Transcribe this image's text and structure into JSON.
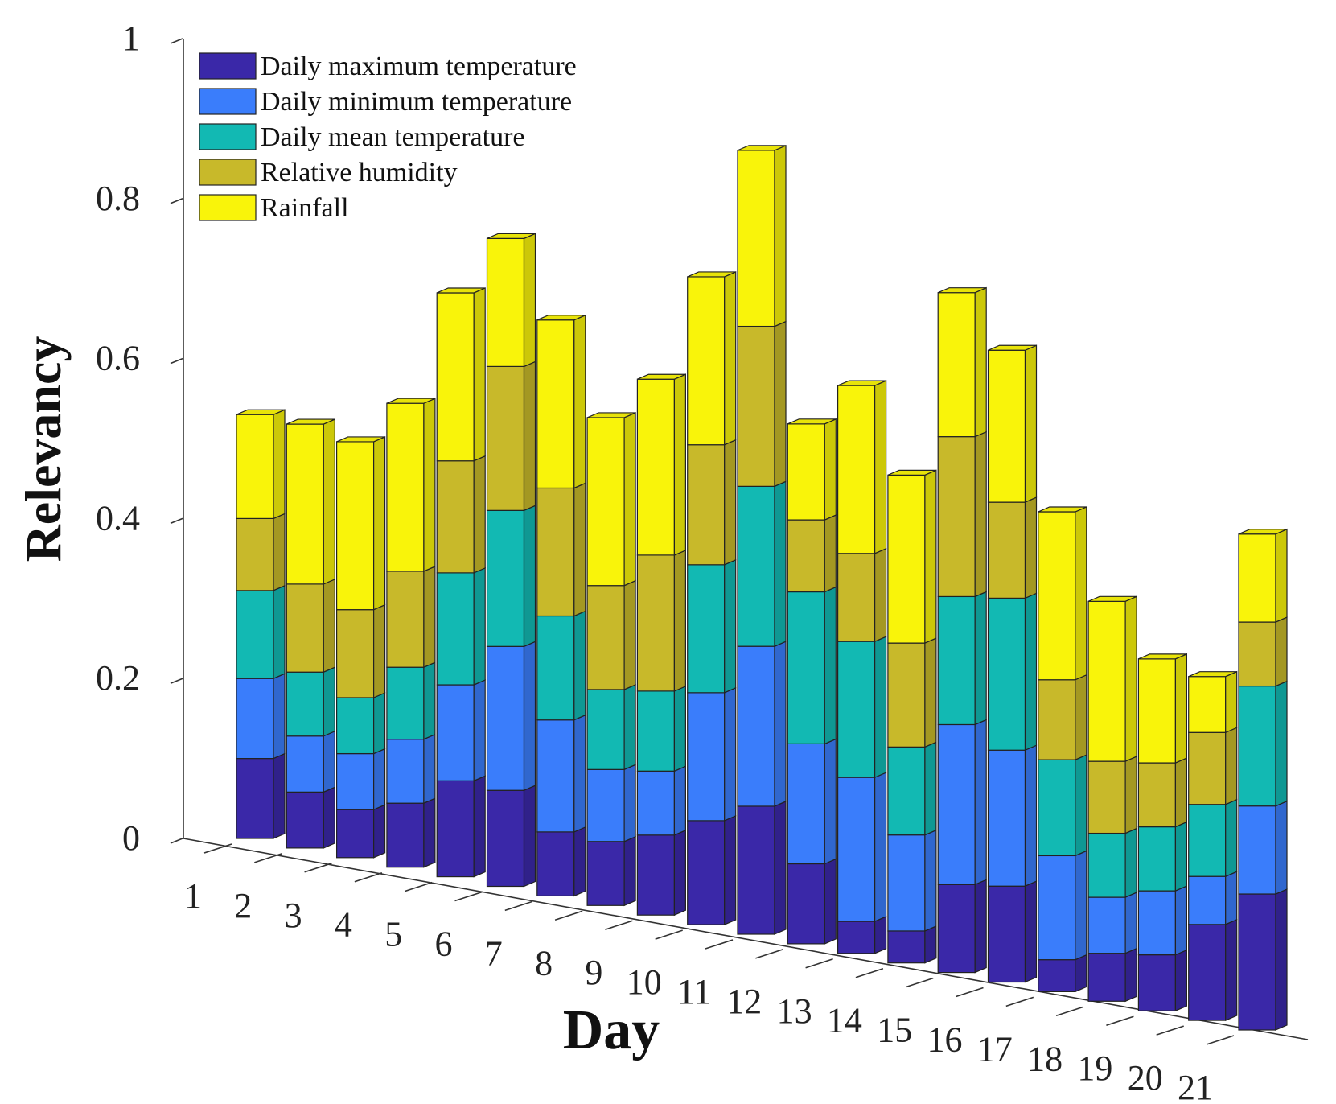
{
  "chart_data": {
    "type": "bar",
    "subtype": "stacked-3d",
    "title": "",
    "xlabel": "Day",
    "ylabel": "Relevancy",
    "ylim": [
      0,
      1
    ],
    "yticks": [
      0,
      0.2,
      0.4,
      0.6,
      0.8,
      1
    ],
    "ytick_labels": [
      "0",
      "0.2",
      "0.4",
      "0.6",
      "0.8",
      "1"
    ],
    "categories": [
      "1",
      "2",
      "3",
      "4",
      "5",
      "6",
      "7",
      "8",
      "9",
      "10",
      "11",
      "12",
      "13",
      "14",
      "15",
      "16",
      "17",
      "18",
      "19",
      "20",
      "21"
    ],
    "legend_position": "top-left",
    "series": [
      {
        "name": "Daily maximum temperature",
        "color": "#3a28a8",
        "values": [
          0.1,
          0.07,
          0.06,
          0.08,
          0.12,
          0.12,
          0.08,
          0.08,
          0.1,
          0.13,
          0.16,
          0.1,
          0.04,
          0.04,
          0.11,
          0.12,
          0.04,
          0.06,
          0.07,
          0.12,
          0.17
        ]
      },
      {
        "name": "Daily minimum temperature",
        "color": "#3a7dfb",
        "values": [
          0.1,
          0.07,
          0.07,
          0.08,
          0.12,
          0.18,
          0.14,
          0.09,
          0.08,
          0.16,
          0.2,
          0.15,
          0.18,
          0.12,
          0.2,
          0.17,
          0.13,
          0.07,
          0.08,
          0.06,
          0.11
        ]
      },
      {
        "name": "Daily mean temperature",
        "color": "#12b9b3",
        "values": [
          0.11,
          0.08,
          0.07,
          0.09,
          0.14,
          0.17,
          0.13,
          0.1,
          0.1,
          0.16,
          0.2,
          0.19,
          0.17,
          0.11,
          0.16,
          0.19,
          0.12,
          0.08,
          0.08,
          0.09,
          0.15
        ]
      },
      {
        "name": "Relative humidity",
        "color": "#c8b92a",
        "values": [
          0.09,
          0.11,
          0.11,
          0.12,
          0.14,
          0.18,
          0.16,
          0.13,
          0.17,
          0.15,
          0.2,
          0.09,
          0.11,
          0.13,
          0.2,
          0.12,
          0.1,
          0.09,
          0.08,
          0.09,
          0.08
        ]
      },
      {
        "name": "Rainfall",
        "color": "#f9f40a",
        "values": [
          0.13,
          0.2,
          0.21,
          0.21,
          0.21,
          0.16,
          0.21,
          0.21,
          0.22,
          0.21,
          0.22,
          0.12,
          0.21,
          0.21,
          0.18,
          0.19,
          0.21,
          0.2,
          0.13,
          0.07,
          0.11
        ]
      }
    ]
  }
}
